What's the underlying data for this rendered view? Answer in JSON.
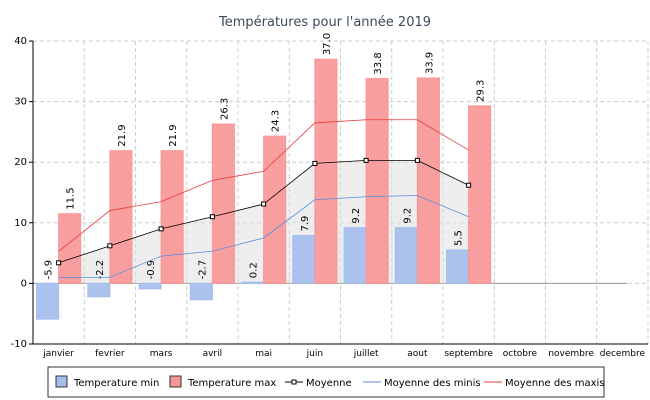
{
  "chart_data": {
    "type": "bar",
    "title": "Températures pour l'année 2019",
    "categories": [
      "janvier",
      "fevrier",
      "mars",
      "avril",
      "mai",
      "juin",
      "juillet",
      "aout",
      "septembre",
      "octobre",
      "novembre",
      "decembre"
    ],
    "ylim": [
      -10,
      40
    ],
    "yticks": [
      -10,
      0,
      10,
      20,
      30,
      40
    ],
    "grid": true,
    "legend": "bottom",
    "series": [
      {
        "name": "Temperature min",
        "kind": "bar",
        "color": "#a2bdec",
        "values": [
          -5.9,
          -2.2,
          -0.9,
          -2.7,
          0.2,
          7.9,
          9.2,
          9.2,
          5.5,
          null,
          null,
          null
        ]
      },
      {
        "name": "Temperature max",
        "kind": "bar",
        "color": "#f99595",
        "values": [
          11.5,
          21.9,
          21.9,
          26.3,
          24.3,
          37.0,
          33.8,
          33.9,
          29.3,
          null,
          null,
          null
        ],
        "value_labels": [
          "11.5",
          "21.9",
          "21.9",
          "26.3",
          "24.3",
          "37.0",
          "33.8",
          "33.9",
          "29.3",
          null,
          null,
          null
        ]
      },
      {
        "name": "Moyenne",
        "kind": "line",
        "color": "#000000",
        "marker": "square",
        "fill": true,
        "values": [
          3.4,
          6.2,
          9.0,
          11.0,
          13.1,
          19.8,
          20.3,
          20.3,
          16.2,
          null,
          null,
          null
        ]
      },
      {
        "name": "Moyenne des minis",
        "kind": "line",
        "color": "#5a8ee0",
        "values": [
          1.0,
          1.0,
          4.5,
          5.3,
          7.5,
          13.8,
          14.3,
          14.5,
          11.0,
          null,
          null,
          null
        ]
      },
      {
        "name": "Moyenne des maxis",
        "kind": "line",
        "color": "#e83a3a",
        "values": [
          5.3,
          12.0,
          13.5,
          17.0,
          18.5,
          26.5,
          27.0,
          27.0,
          22.0,
          null,
          null,
          null
        ]
      }
    ]
  }
}
